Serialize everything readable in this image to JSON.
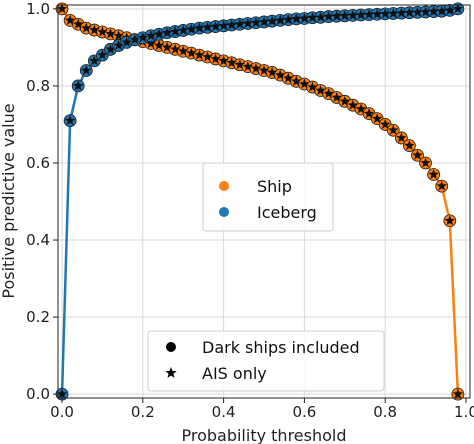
{
  "chart_data": {
    "type": "line",
    "xlabel": "Probability threshold",
    "ylabel": "Positive predictive value",
    "xlim": [
      -0.01,
      1.01
    ],
    "ylim": [
      -0.01,
      1.01
    ],
    "x_ticks": [
      "0.0",
      "0.2",
      "0.4",
      "0.6",
      "0.8",
      "1.0"
    ],
    "y_ticks": [
      "0.0",
      "0.2",
      "0.4",
      "0.6",
      "0.8",
      "1.0"
    ],
    "grid": true,
    "series": [
      {
        "name": "Ship",
        "color": "#ff7f0e",
        "x": [
          0.0,
          0.02,
          0.04,
          0.06,
          0.08,
          0.1,
          0.12,
          0.14,
          0.16,
          0.18,
          0.2,
          0.22,
          0.24,
          0.26,
          0.28,
          0.3,
          0.32,
          0.34,
          0.36,
          0.38,
          0.4,
          0.42,
          0.44,
          0.46,
          0.48,
          0.5,
          0.52,
          0.54,
          0.56,
          0.58,
          0.6,
          0.62,
          0.64,
          0.66,
          0.68,
          0.7,
          0.72,
          0.74,
          0.76,
          0.78,
          0.8,
          0.82,
          0.84,
          0.86,
          0.88,
          0.9,
          0.92,
          0.94,
          0.96,
          0.98
        ],
        "values": [
          1.0,
          0.97,
          0.96,
          0.95,
          0.945,
          0.94,
          0.935,
          0.93,
          0.925,
          0.92,
          0.915,
          0.91,
          0.905,
          0.9,
          0.895,
          0.89,
          0.885,
          0.88,
          0.875,
          0.87,
          0.865,
          0.86,
          0.855,
          0.85,
          0.845,
          0.84,
          0.835,
          0.828,
          0.82,
          0.812,
          0.805,
          0.797,
          0.788,
          0.78,
          0.77,
          0.76,
          0.75,
          0.74,
          0.728,
          0.715,
          0.7,
          0.685,
          0.665,
          0.645,
          0.62,
          0.6,
          0.57,
          0.54,
          0.45,
          0.0
        ]
      },
      {
        "name": "Iceberg",
        "color": "#1f77b4",
        "x": [
          0.0,
          0.02,
          0.04,
          0.06,
          0.08,
          0.1,
          0.12,
          0.14,
          0.16,
          0.18,
          0.2,
          0.22,
          0.24,
          0.26,
          0.28,
          0.3,
          0.32,
          0.34,
          0.36,
          0.38,
          0.4,
          0.42,
          0.44,
          0.46,
          0.48,
          0.5,
          0.52,
          0.54,
          0.56,
          0.58,
          0.6,
          0.62,
          0.64,
          0.66,
          0.68,
          0.7,
          0.72,
          0.74,
          0.76,
          0.78,
          0.8,
          0.82,
          0.84,
          0.86,
          0.88,
          0.9,
          0.92,
          0.94,
          0.96,
          0.98
        ],
        "values": [
          0.0,
          0.71,
          0.8,
          0.84,
          0.865,
          0.88,
          0.895,
          0.905,
          0.913,
          0.92,
          0.925,
          0.93,
          0.934,
          0.938,
          0.941,
          0.944,
          0.947,
          0.95,
          0.952,
          0.954,
          0.956,
          0.958,
          0.96,
          0.962,
          0.964,
          0.966,
          0.968,
          0.97,
          0.972,
          0.974,
          0.975,
          0.977,
          0.978,
          0.98,
          0.981,
          0.982,
          0.983,
          0.984,
          0.985,
          0.986,
          0.987,
          0.988,
          0.989,
          0.99,
          0.991,
          0.992,
          0.993,
          0.994,
          0.996,
          1.0
        ]
      }
    ],
    "legends": {
      "class_legend": {
        "placement": "center",
        "entries": [
          {
            "label": "Ship",
            "color": "#ff7f0e"
          },
          {
            "label": "Iceberg",
            "color": "#1f77b4"
          }
        ]
      },
      "marker_legend": {
        "placement": "lower-center",
        "entries": [
          {
            "label": "Dark ships included",
            "marker": "circle"
          },
          {
            "label": "AIS only",
            "marker": "star"
          }
        ]
      }
    }
  }
}
